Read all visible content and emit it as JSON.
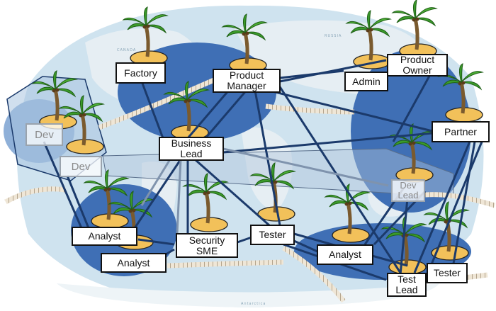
{
  "nodes": {
    "factory": "Factory",
    "product_manager": "Product\nManager",
    "admin": "Admin",
    "product_owner": "Product\nOwner",
    "partner": "Partner",
    "business_lead": "Business\nLead",
    "dev_1": "Dev",
    "dev_2": "Dev",
    "dev_lead": "Dev\nLead",
    "analyst_1": "Analyst",
    "analyst_2": "Analyst",
    "security_sme": "Security\nSME",
    "tester_1": "Tester",
    "analyst_3": "Analyst",
    "test_lead": "Test\nLead",
    "tester_2": "Tester"
  },
  "map_labels": {
    "canada": "CANADA",
    "russia": "RUSSIA",
    "antarctica": "Antarctica"
  },
  "colors": {
    "ocean": "#cfe3ef",
    "land": "#e6eef3",
    "island_blob": "#3f6fb5",
    "island_blob_light": "#8fb0d8",
    "connector": "#1b3a6b",
    "connector_light": "#7f93ad",
    "sand": "#f2c15a",
    "palm_leaf": "#3b9b2a",
    "trunk": "#7a5a2e",
    "bridge": "#c9b79a"
  }
}
